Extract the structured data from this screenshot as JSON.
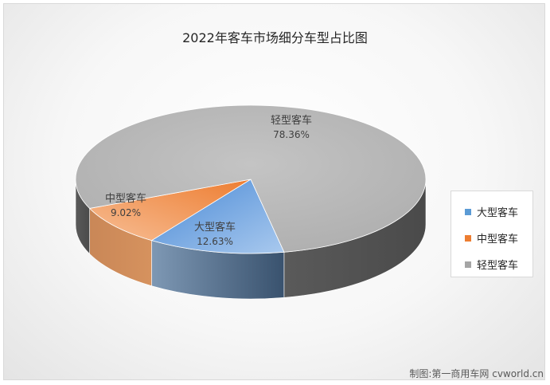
{
  "chart_data": {
    "type": "pie",
    "title": "2022年客车市场细分车型占比图",
    "slices": [
      {
        "label": "大型客车",
        "value": 12.63,
        "value_label": "12.63%",
        "color": "#6fa3e0",
        "side_color": "#3d5f86"
      },
      {
        "label": "中型客车",
        "value": 9.02,
        "value_label": "9.02%",
        "color": "#f4a06a",
        "side_color": "#b36d3c"
      },
      {
        "label": "轻型客车",
        "value": 78.36,
        "value_label": "78.36%",
        "color": "#bdbdbd",
        "side_color": "#6f6f6f"
      }
    ],
    "style": "3d",
    "legend_position": "right"
  },
  "legend": {
    "items": [
      {
        "label": "大型客车",
        "color": "#5b9bd5"
      },
      {
        "label": "中型客车",
        "color": "#ed7d31"
      },
      {
        "label": "轻型客车",
        "color": "#a5a5a5"
      }
    ]
  },
  "credit": "制图:第一商用车网 cvworld.cn"
}
